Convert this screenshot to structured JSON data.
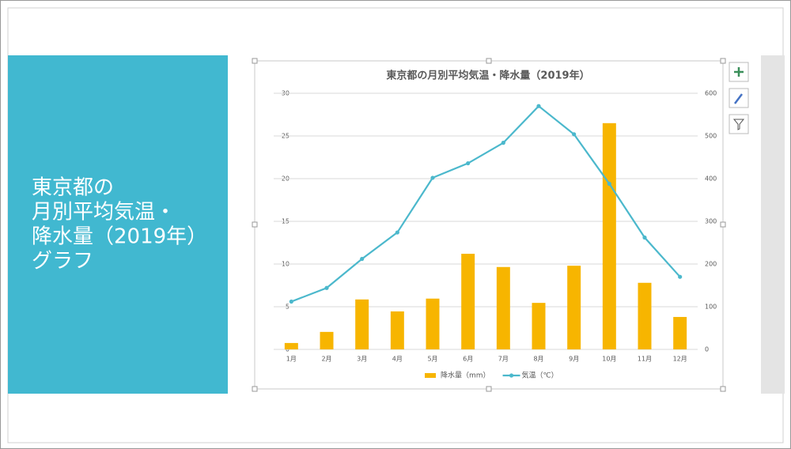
{
  "slide": {
    "title_lines": [
      "東京都の",
      "月別平均気温・",
      "降水量（2019年）",
      "グラフ"
    ]
  },
  "chart_data": {
    "type": "combo",
    "title": "東京都の月別平均気温・降水量（2019年）",
    "categories": [
      "1月",
      "2月",
      "3月",
      "4月",
      "5月",
      "6月",
      "7月",
      "8月",
      "9月",
      "10月",
      "11月",
      "12月"
    ],
    "series": [
      {
        "name": "降水量（mm）",
        "type": "bar",
        "axis": "y2",
        "color": "#f7b500",
        "values": [
          15,
          41,
          117,
          89,
          119,
          224,
          193,
          109,
          196,
          530,
          156,
          76
        ]
      },
      {
        "name": "気温（℃）",
        "type": "line",
        "color": "#4bb8cc",
        "values": [
          5.6,
          7.2,
          10.6,
          13.7,
          20.1,
          21.8,
          24.2,
          28.5,
          25.2,
          19.4,
          13.1,
          8.5
        ]
      }
    ],
    "ylim": [
      0,
      30
    ],
    "yticks": [
      0,
      5,
      10,
      15,
      20,
      25,
      30
    ],
    "y2lim": [
      0,
      600
    ],
    "y2ticks": [
      0,
      100,
      200,
      300,
      400,
      500,
      600
    ],
    "grid": true,
    "legend": "bottom"
  }
}
